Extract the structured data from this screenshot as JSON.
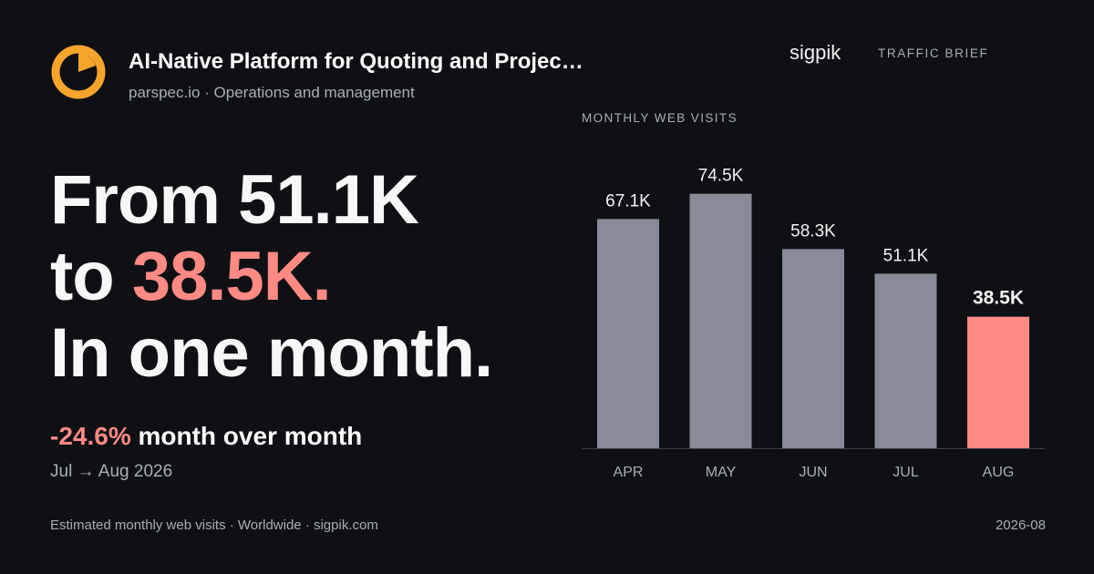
{
  "company": {
    "title": "AI-Native Platform for Quoting and Projec…",
    "subtitle": "parspec.io · Operations and management",
    "logo_icon": "orange-ring-logo-icon"
  },
  "brand": {
    "name": "sigpik",
    "tag": "TRAFFIC BRIEF"
  },
  "headline": {
    "line1": "From 51.1K",
    "line2_prefix": "to ",
    "line2_accent": "38.5K.",
    "line3": "In one month."
  },
  "change": {
    "pct": "-24.6%",
    "label": " month over month",
    "period": "Jul → Aug 2026"
  },
  "footer": {
    "left": "Estimated monthly web visits · Worldwide · sigpik.com",
    "right": "2026-08"
  },
  "colors": {
    "background": "#0e1014",
    "bar": "#868b97",
    "highlight": "#ff8a84",
    "logo": "#f5a42c"
  },
  "chart_data": {
    "type": "bar",
    "title": "MONTHLY WEB VISITS",
    "categories": [
      "APR",
      "MAY",
      "JUN",
      "JUL",
      "AUG"
    ],
    "values": [
      67100,
      74500,
      58300,
      51100,
      38500
    ],
    "value_labels": [
      "67.1K",
      "74.5K",
      "58.3K",
      "51.1K",
      "38.5K"
    ],
    "highlight_index": 4,
    "ylim": [
      0,
      80000
    ],
    "grid": false,
    "legend": "none"
  }
}
